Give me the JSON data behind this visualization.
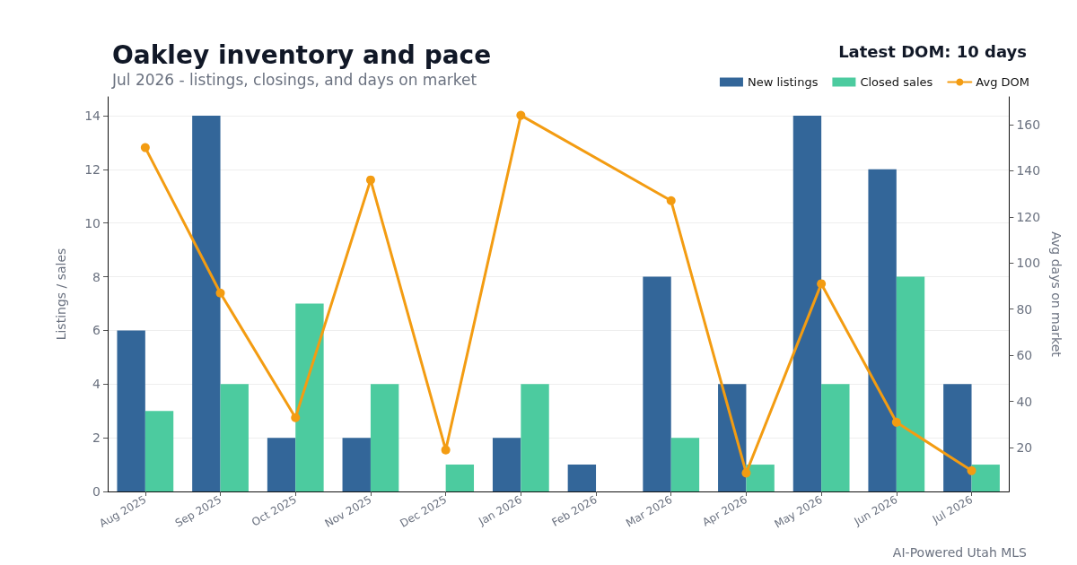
{
  "chart_data": {
    "type": "bar",
    "title": "Oakley inventory and pace",
    "subtitle": "Jul 2026 - listings, closings, and days on market",
    "ylabel": "Listings / sales",
    "y2label": "Avg days on market",
    "categories": [
      "Aug 2025",
      "Sep 2025",
      "Oct 2025",
      "Nov 2025",
      "Dec 2025",
      "Jan 2026",
      "Feb 2026",
      "Mar 2026",
      "Apr 2026",
      "May 2026",
      "Jun 2026",
      "Jul 2026"
    ],
    "series": [
      {
        "name": "New listings",
        "color": "#336699",
        "values": [
          6,
          14,
          2,
          2,
          0,
          2,
          1,
          8,
          4,
          14,
          12,
          4
        ]
      },
      {
        "name": "Closed sales",
        "color": "#4ccb9f",
        "values": [
          3,
          4,
          7,
          4,
          1,
          4,
          0,
          2,
          1,
          4,
          8,
          1
        ]
      },
      {
        "name": "Avg DOM",
        "type": "line",
        "axis": "y2",
        "color": "#f39c12",
        "values": [
          150,
          87,
          33,
          136,
          19,
          164,
          null,
          127,
          9,
          91,
          31,
          10
        ]
      }
    ],
    "ylim": [
      0,
      14.7
    ],
    "yticks": [
      0,
      2,
      4,
      6,
      8,
      10,
      12,
      14
    ],
    "y2lim": [
      1,
      172
    ],
    "y2ticks": [
      20,
      40,
      60,
      80,
      100,
      120,
      140,
      160
    ],
    "grid": "y",
    "legend": "top",
    "marker": "circle",
    "line_style": "solid",
    "annotations": [
      "Latest DOM: 10 days",
      "AI-Powered Utah MLS"
    ]
  }
}
